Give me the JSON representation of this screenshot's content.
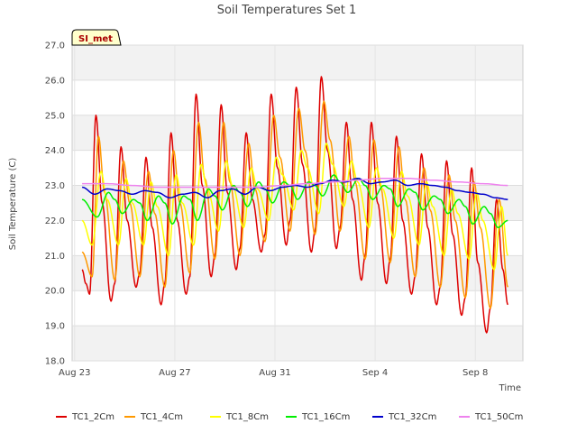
{
  "chart_data": {
    "type": "line",
    "title": "Soil Temperatures Set 1",
    "xlabel": "Time",
    "ylabel": "Soil Temperature (C)",
    "badge": "SI_met",
    "ylim": [
      18.0,
      27.0
    ],
    "yticks": [
      "18.0",
      "19.0",
      "20.0",
      "21.0",
      "22.0",
      "23.0",
      "24.0",
      "25.0",
      "26.0",
      "27.0"
    ],
    "xlim_days": [
      -0.1,
      17.9
    ],
    "xticks": [
      {
        "day": 0,
        "label": "Aug 23"
      },
      {
        "day": 4,
        "label": "Aug 27"
      },
      {
        "day": 8,
        "label": "Aug 31"
      },
      {
        "day": 12,
        "label": "Sep 4"
      },
      {
        "day": 16,
        "label": "Sep 8"
      }
    ],
    "grid": "horizontal bands",
    "legend_position": "bottom",
    "x_start_day": 0.3,
    "x_end_day": 17.3,
    "series": [
      {
        "name": "TC1_2Cm",
        "color": "#dd0000",
        "width": 1.5,
        "days": [
          0.3,
          0.45,
          0.6,
          0.85,
          1.1,
          1.45,
          1.6,
          1.85,
          2.1,
          2.45,
          2.6,
          2.85,
          3.1,
          3.45,
          3.6,
          3.85,
          4.1,
          4.45,
          4.6,
          4.85,
          5.1,
          5.45,
          5.6,
          5.85,
          6.1,
          6.45,
          6.6,
          6.85,
          7.1,
          7.45,
          7.6,
          7.85,
          8.1,
          8.45,
          8.6,
          8.85,
          9.1,
          9.45,
          9.6,
          9.85,
          10.1,
          10.45,
          10.6,
          10.85,
          11.1,
          11.45,
          11.6,
          11.85,
          12.1,
          12.45,
          12.6,
          12.85,
          13.1,
          13.45,
          13.6,
          13.85,
          14.1,
          14.45,
          14.6,
          14.85,
          15.1,
          15.45,
          15.6,
          15.85,
          16.1,
          16.45,
          16.6,
          16.85,
          17.1,
          17.3
        ],
        "values": [
          20.6,
          20.2,
          19.9,
          25.0,
          22.5,
          19.7,
          20.2,
          24.1,
          22.0,
          20.1,
          20.5,
          23.8,
          21.8,
          19.6,
          20.2,
          24.5,
          22.0,
          19.9,
          20.4,
          25.6,
          23.0,
          20.4,
          21.0,
          25.3,
          22.8,
          20.6,
          21.2,
          24.5,
          22.6,
          21.1,
          21.6,
          25.6,
          23.5,
          21.3,
          22.0,
          25.8,
          23.6,
          21.1,
          21.7,
          26.1,
          24.0,
          21.2,
          21.8,
          24.8,
          22.6,
          20.3,
          21.0,
          24.8,
          22.5,
          20.2,
          20.9,
          24.4,
          22.0,
          19.9,
          20.4,
          23.9,
          21.8,
          19.6,
          20.1,
          23.7,
          21.6,
          19.3,
          19.8,
          23.5,
          20.8,
          18.8,
          19.5,
          22.6,
          20.6,
          19.6
        ]
      },
      {
        "name": "TC1_4Cm",
        "color": "#ff9900",
        "width": 1.5,
        "days": [
          0.3,
          0.7,
          0.95,
          1.2,
          1.6,
          1.95,
          2.2,
          2.6,
          2.95,
          3.2,
          3.6,
          3.95,
          4.2,
          4.6,
          4.95,
          5.2,
          5.6,
          5.95,
          6.2,
          6.6,
          6.95,
          7.2,
          7.6,
          7.95,
          8.2,
          8.6,
          8.95,
          9.2,
          9.6,
          9.95,
          10.2,
          10.6,
          10.95,
          11.2,
          11.6,
          11.95,
          12.2,
          12.6,
          12.95,
          13.2,
          13.6,
          13.95,
          14.2,
          14.6,
          14.95,
          15.2,
          15.6,
          15.95,
          16.2,
          16.6,
          16.95,
          17.3
        ],
        "values": [
          21.1,
          20.4,
          24.4,
          22.8,
          20.3,
          23.7,
          22.5,
          20.4,
          23.4,
          22.2,
          20.1,
          24.0,
          22.5,
          20.5,
          24.8,
          23.2,
          20.9,
          24.8,
          23.1,
          21.0,
          24.2,
          22.9,
          21.4,
          25.0,
          23.8,
          21.7,
          25.2,
          24.0,
          21.6,
          25.4,
          24.3,
          21.7,
          24.4,
          23.1,
          20.9,
          24.3,
          23.0,
          20.8,
          24.1,
          22.6,
          20.4,
          23.5,
          22.3,
          20.1,
          23.3,
          22.0,
          19.8,
          23.1,
          21.8,
          19.5,
          22.6,
          20.1
        ]
      },
      {
        "name": "TC1_8Cm",
        "color": "#ffff00",
        "width": 1.5,
        "days": [
          0.3,
          0.7,
          1.05,
          1.3,
          1.75,
          2.05,
          2.3,
          2.75,
          3.05,
          3.3,
          3.75,
          4.05,
          4.3,
          4.75,
          5.05,
          5.3,
          5.75,
          6.05,
          6.3,
          6.75,
          7.05,
          7.3,
          7.75,
          8.05,
          8.3,
          8.75,
          9.05,
          9.3,
          9.75,
          10.05,
          10.3,
          10.75,
          11.05,
          11.3,
          11.75,
          12.05,
          12.3,
          12.75,
          13.05,
          13.3,
          13.75,
          14.05,
          14.3,
          14.75,
          15.05,
          15.3,
          15.75,
          16.05,
          16.3,
          16.75,
          17.05,
          17.3
        ],
        "values": [
          22.0,
          21.3,
          23.4,
          22.6,
          21.3,
          23.2,
          22.5,
          21.3,
          23.1,
          22.4,
          21.0,
          23.3,
          22.5,
          21.3,
          23.6,
          22.9,
          21.7,
          23.7,
          23.0,
          21.8,
          23.5,
          22.9,
          22.0,
          23.8,
          23.3,
          22.3,
          24.0,
          23.5,
          22.2,
          24.2,
          23.6,
          22.4,
          23.7,
          23.1,
          21.8,
          23.5,
          22.9,
          21.5,
          23.4,
          22.7,
          21.3,
          23.1,
          22.4,
          21.0,
          22.9,
          22.2,
          20.9,
          22.8,
          22.0,
          20.6,
          22.4,
          21.0
        ]
      },
      {
        "name": "TC1_16Cm",
        "color": "#00ee00",
        "width": 1.5,
        "days": [
          0.3,
          0.9,
          1.35,
          1.6,
          1.9,
          2.35,
          2.6,
          2.9,
          3.35,
          3.6,
          3.9,
          4.35,
          4.6,
          4.9,
          5.35,
          5.6,
          5.9,
          6.35,
          6.6,
          6.9,
          7.35,
          7.6,
          7.9,
          8.35,
          8.6,
          8.9,
          9.35,
          9.6,
          9.9,
          10.35,
          10.6,
          10.9,
          11.35,
          11.6,
          11.9,
          12.35,
          12.6,
          12.9,
          13.35,
          13.6,
          13.9,
          14.35,
          14.6,
          14.9,
          15.35,
          15.6,
          15.9,
          16.35,
          16.6,
          16.9,
          17.3
        ],
        "values": [
          22.6,
          22.1,
          22.8,
          22.6,
          22.2,
          22.6,
          22.5,
          22.0,
          22.7,
          22.5,
          21.9,
          22.7,
          22.6,
          22.0,
          22.9,
          22.7,
          22.3,
          23.0,
          22.8,
          22.4,
          23.1,
          22.9,
          22.5,
          23.1,
          23.0,
          22.6,
          23.1,
          23.0,
          22.7,
          23.3,
          23.1,
          22.8,
          23.2,
          23.0,
          22.6,
          23.0,
          22.9,
          22.4,
          22.9,
          22.8,
          22.3,
          22.7,
          22.6,
          22.2,
          22.6,
          22.4,
          21.9,
          22.4,
          22.2,
          21.8,
          22.0
        ]
      },
      {
        "name": "TC1_32Cm",
        "color": "#0000cc",
        "width": 1.5,
        "days": [
          0.3,
          0.8,
          1.3,
          1.8,
          2.3,
          2.8,
          3.3,
          3.8,
          4.3,
          4.8,
          5.3,
          5.8,
          6.3,
          6.8,
          7.3,
          7.8,
          8.3,
          8.8,
          9.3,
          9.8,
          10.3,
          10.8,
          11.3,
          11.8,
          12.3,
          12.8,
          13.3,
          13.8,
          14.3,
          14.8,
          15.3,
          15.8,
          16.3,
          16.8,
          17.3
        ],
        "values": [
          22.95,
          22.75,
          22.9,
          22.85,
          22.75,
          22.85,
          22.8,
          22.65,
          22.75,
          22.8,
          22.65,
          22.85,
          22.9,
          22.75,
          22.95,
          22.85,
          22.95,
          23.0,
          22.95,
          23.05,
          23.15,
          23.1,
          23.2,
          23.05,
          23.1,
          23.15,
          23.0,
          23.05,
          23.0,
          22.95,
          22.85,
          22.8,
          22.75,
          22.65,
          22.6
        ]
      },
      {
        "name": "TC1_50Cm",
        "color": "#ee82ee",
        "width": 1.5,
        "days": [
          0.3,
          1.3,
          2.3,
          3.3,
          4.3,
          5.3,
          6.3,
          7.3,
          8.3,
          9.3,
          10.3,
          11.3,
          12.3,
          13.3,
          14.3,
          15.3,
          16.3,
          17.3
        ],
        "values": [
          23.05,
          23.05,
          23.0,
          22.95,
          22.95,
          22.95,
          22.95,
          22.95,
          23.0,
          23.05,
          23.1,
          23.15,
          23.2,
          23.2,
          23.15,
          23.1,
          23.05,
          23.0
        ]
      }
    ]
  }
}
